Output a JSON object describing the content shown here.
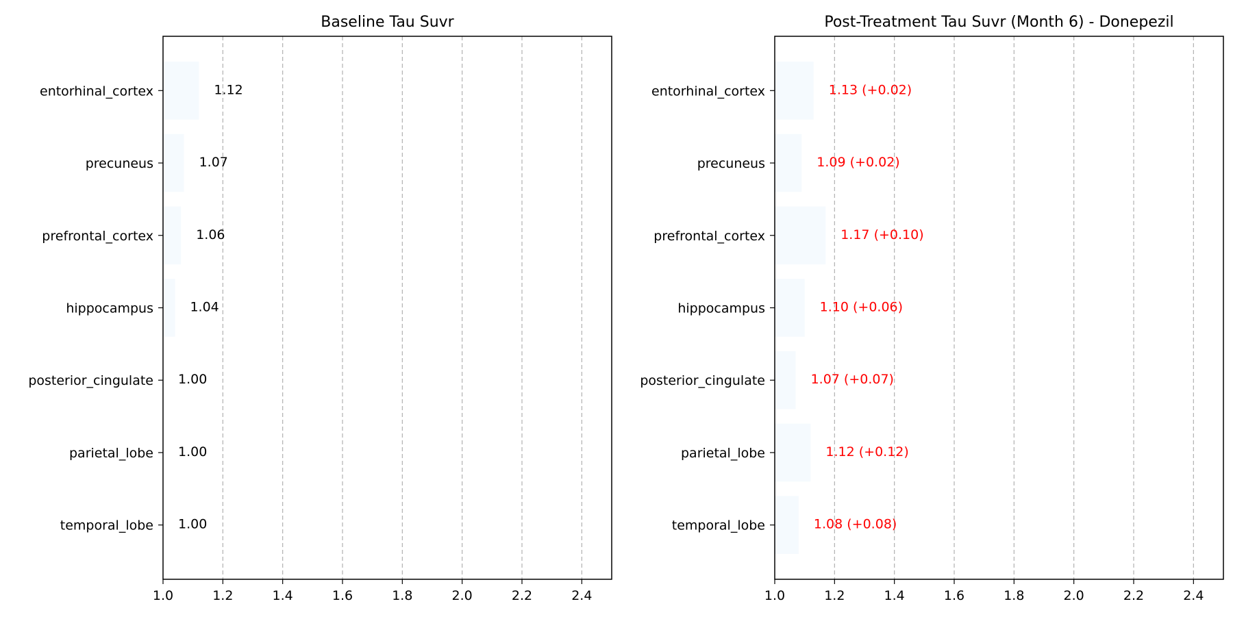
{
  "chart_data": [
    {
      "type": "bar",
      "orientation": "horizontal",
      "title": "Baseline Tau Suvr",
      "xlabel": "",
      "ylabel": "",
      "xlim": [
        1.0,
        2.5
      ],
      "x_ticks": [
        1.0,
        1.2,
        1.4,
        1.6,
        1.8,
        2.0,
        2.2,
        2.4
      ],
      "grid": "vertical dashed",
      "categories": [
        "entorhinal_cortex",
        "precuneus",
        "prefrontal_cortex",
        "hippocampus",
        "posterior_cingulate",
        "parietal_lobe",
        "temporal_lobe"
      ],
      "values": [
        1.12,
        1.07,
        1.06,
        1.04,
        1.0,
        1.0,
        1.0
      ],
      "data_labels": [
        "1.12",
        "1.07",
        "1.06",
        "1.04",
        "1.00",
        "1.00",
        "1.00"
      ],
      "label_color": "#000000",
      "bar_color": "#f5fafe"
    },
    {
      "type": "bar",
      "orientation": "horizontal",
      "title": "Post-Treatment Tau Suvr (Month 6) - Donepezil",
      "xlabel": "",
      "ylabel": "",
      "xlim": [
        1.0,
        2.5
      ],
      "x_ticks": [
        1.0,
        1.2,
        1.4,
        1.6,
        1.8,
        2.0,
        2.2,
        2.4
      ],
      "grid": "vertical dashed",
      "categories": [
        "entorhinal_cortex",
        "precuneus",
        "prefrontal_cortex",
        "hippocampus",
        "posterior_cingulate",
        "parietal_lobe",
        "temporal_lobe"
      ],
      "values": [
        1.13,
        1.09,
        1.17,
        1.1,
        1.07,
        1.12,
        1.08
      ],
      "data_labels": [
        "1.13 (+0.02)",
        "1.09 (+0.02)",
        "1.17 (+0.10)",
        "1.10 (+0.06)",
        "1.07 (+0.07)",
        "1.12 (+0.12)",
        "1.08 (+0.08)"
      ],
      "label_color": "#ff0000",
      "bar_color": "#f5fafe"
    }
  ]
}
